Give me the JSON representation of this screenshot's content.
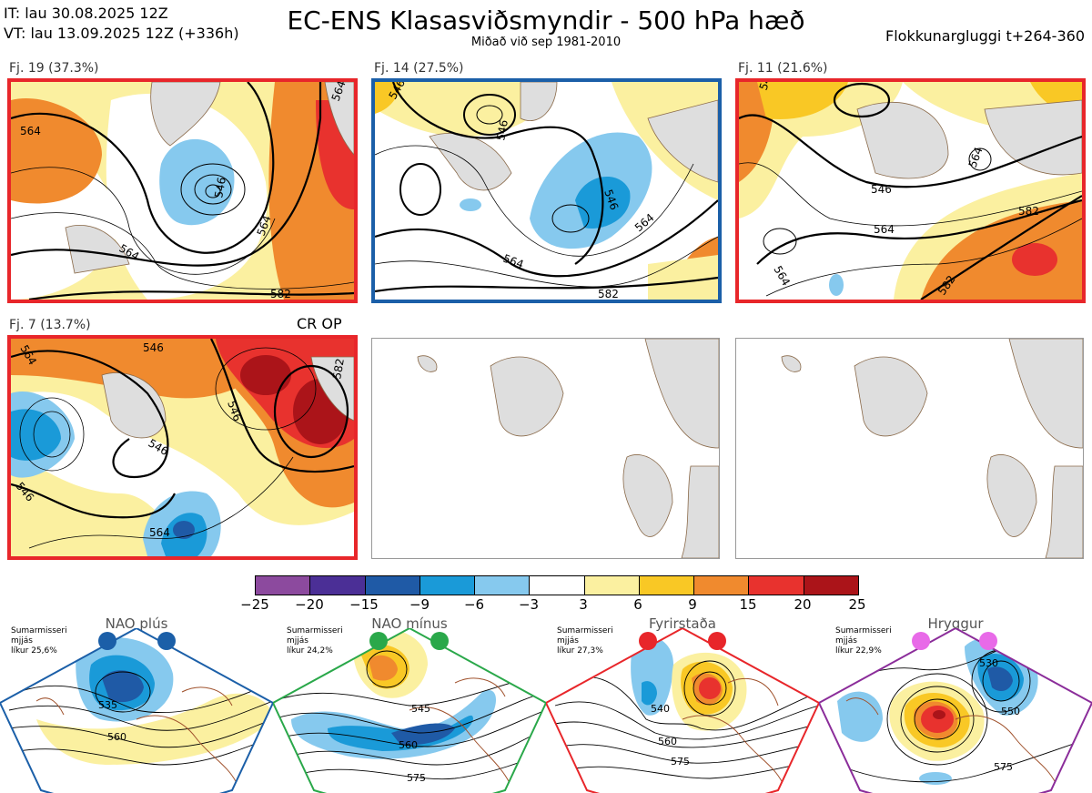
{
  "header": {
    "it_line": "IT: lau 30.08.2025 12Z",
    "vt_line": "VT: lau 13.09.2025 12Z  (+336h)",
    "title": "EC-ENS Klasasviðsmyndir - 500 hPa hæð",
    "subtitle": "Miðað við sep 1981-2010",
    "window": "Flokkunargluggi t+264-360"
  },
  "colors": {
    "red_frame": "#e8262a",
    "blue_frame": "#1b5fa8",
    "green_frame": "#2aa84a",
    "purple_frame": "#8b2d9a",
    "land": "#dedede",
    "coast": "#8a6a4a"
  },
  "clusters": [
    {
      "label": "Fj. 19 (37.3%)",
      "frame": "red",
      "contours": [
        "564",
        "546",
        "564",
        "564",
        "564",
        "582"
      ]
    },
    {
      "label": "Fj. 14 (27.5%)",
      "frame": "blue",
      "contours": [
        "546",
        "546",
        "546",
        "564",
        "564",
        "582"
      ]
    },
    {
      "label": "Fj. 11 (21.6%)",
      "frame": "red",
      "contours": [
        "546",
        "546",
        "564",
        "564",
        "564",
        "582",
        "582"
      ]
    },
    {
      "label": "Fj. 7 (13.7%)",
      "frame": "red",
      "contours": [
        "564",
        "546",
        "546",
        "546",
        "546",
        "564",
        "582"
      ]
    }
  ],
  "cr_op": "CR OP",
  "colorbar": {
    "ticks": [
      "−25",
      "−20",
      "−15",
      "−9",
      "−6",
      "−3",
      "3",
      "6",
      "9",
      "15",
      "20",
      "25"
    ],
    "colors": [
      "#8c4a9e",
      "#4b2f96",
      "#1f5aa6",
      "#1a9ad8",
      "#86c9ee",
      "#ffffff",
      "#fbf0a0",
      "#f9c825",
      "#f08a2e",
      "#e8322e",
      "#ab1419"
    ]
  },
  "regimes": [
    {
      "title": "NAO plús",
      "info": [
        "Sumarmisseri",
        "mjjás",
        "líkur 25,6%"
      ],
      "dot_color": "#1b5fa8",
      "frame": "blue",
      "contours": [
        "535",
        "560"
      ]
    },
    {
      "title": "NAO mínus",
      "info": [
        "Sumarmisseri",
        "mjjás",
        "líkur 24,2%"
      ],
      "dot_color": "#2aa84a",
      "frame": "green",
      "contours": [
        "545",
        "560",
        "575"
      ]
    },
    {
      "title": "Fyrirstaða",
      "info": [
        "Sumarmisseri",
        "mjjás",
        "líkur 27,3%"
      ],
      "dot_color": "#e8262a",
      "frame": "red",
      "contours": [
        "540",
        "560",
        "575"
      ]
    },
    {
      "title": "Hryggur",
      "info": [
        "Sumarmisseri",
        "mjjás",
        "líkur 22,9%"
      ],
      "dot_color": "#e86ae8",
      "frame": "purple",
      "contours": [
        "530",
        "550",
        "575"
      ]
    }
  ]
}
